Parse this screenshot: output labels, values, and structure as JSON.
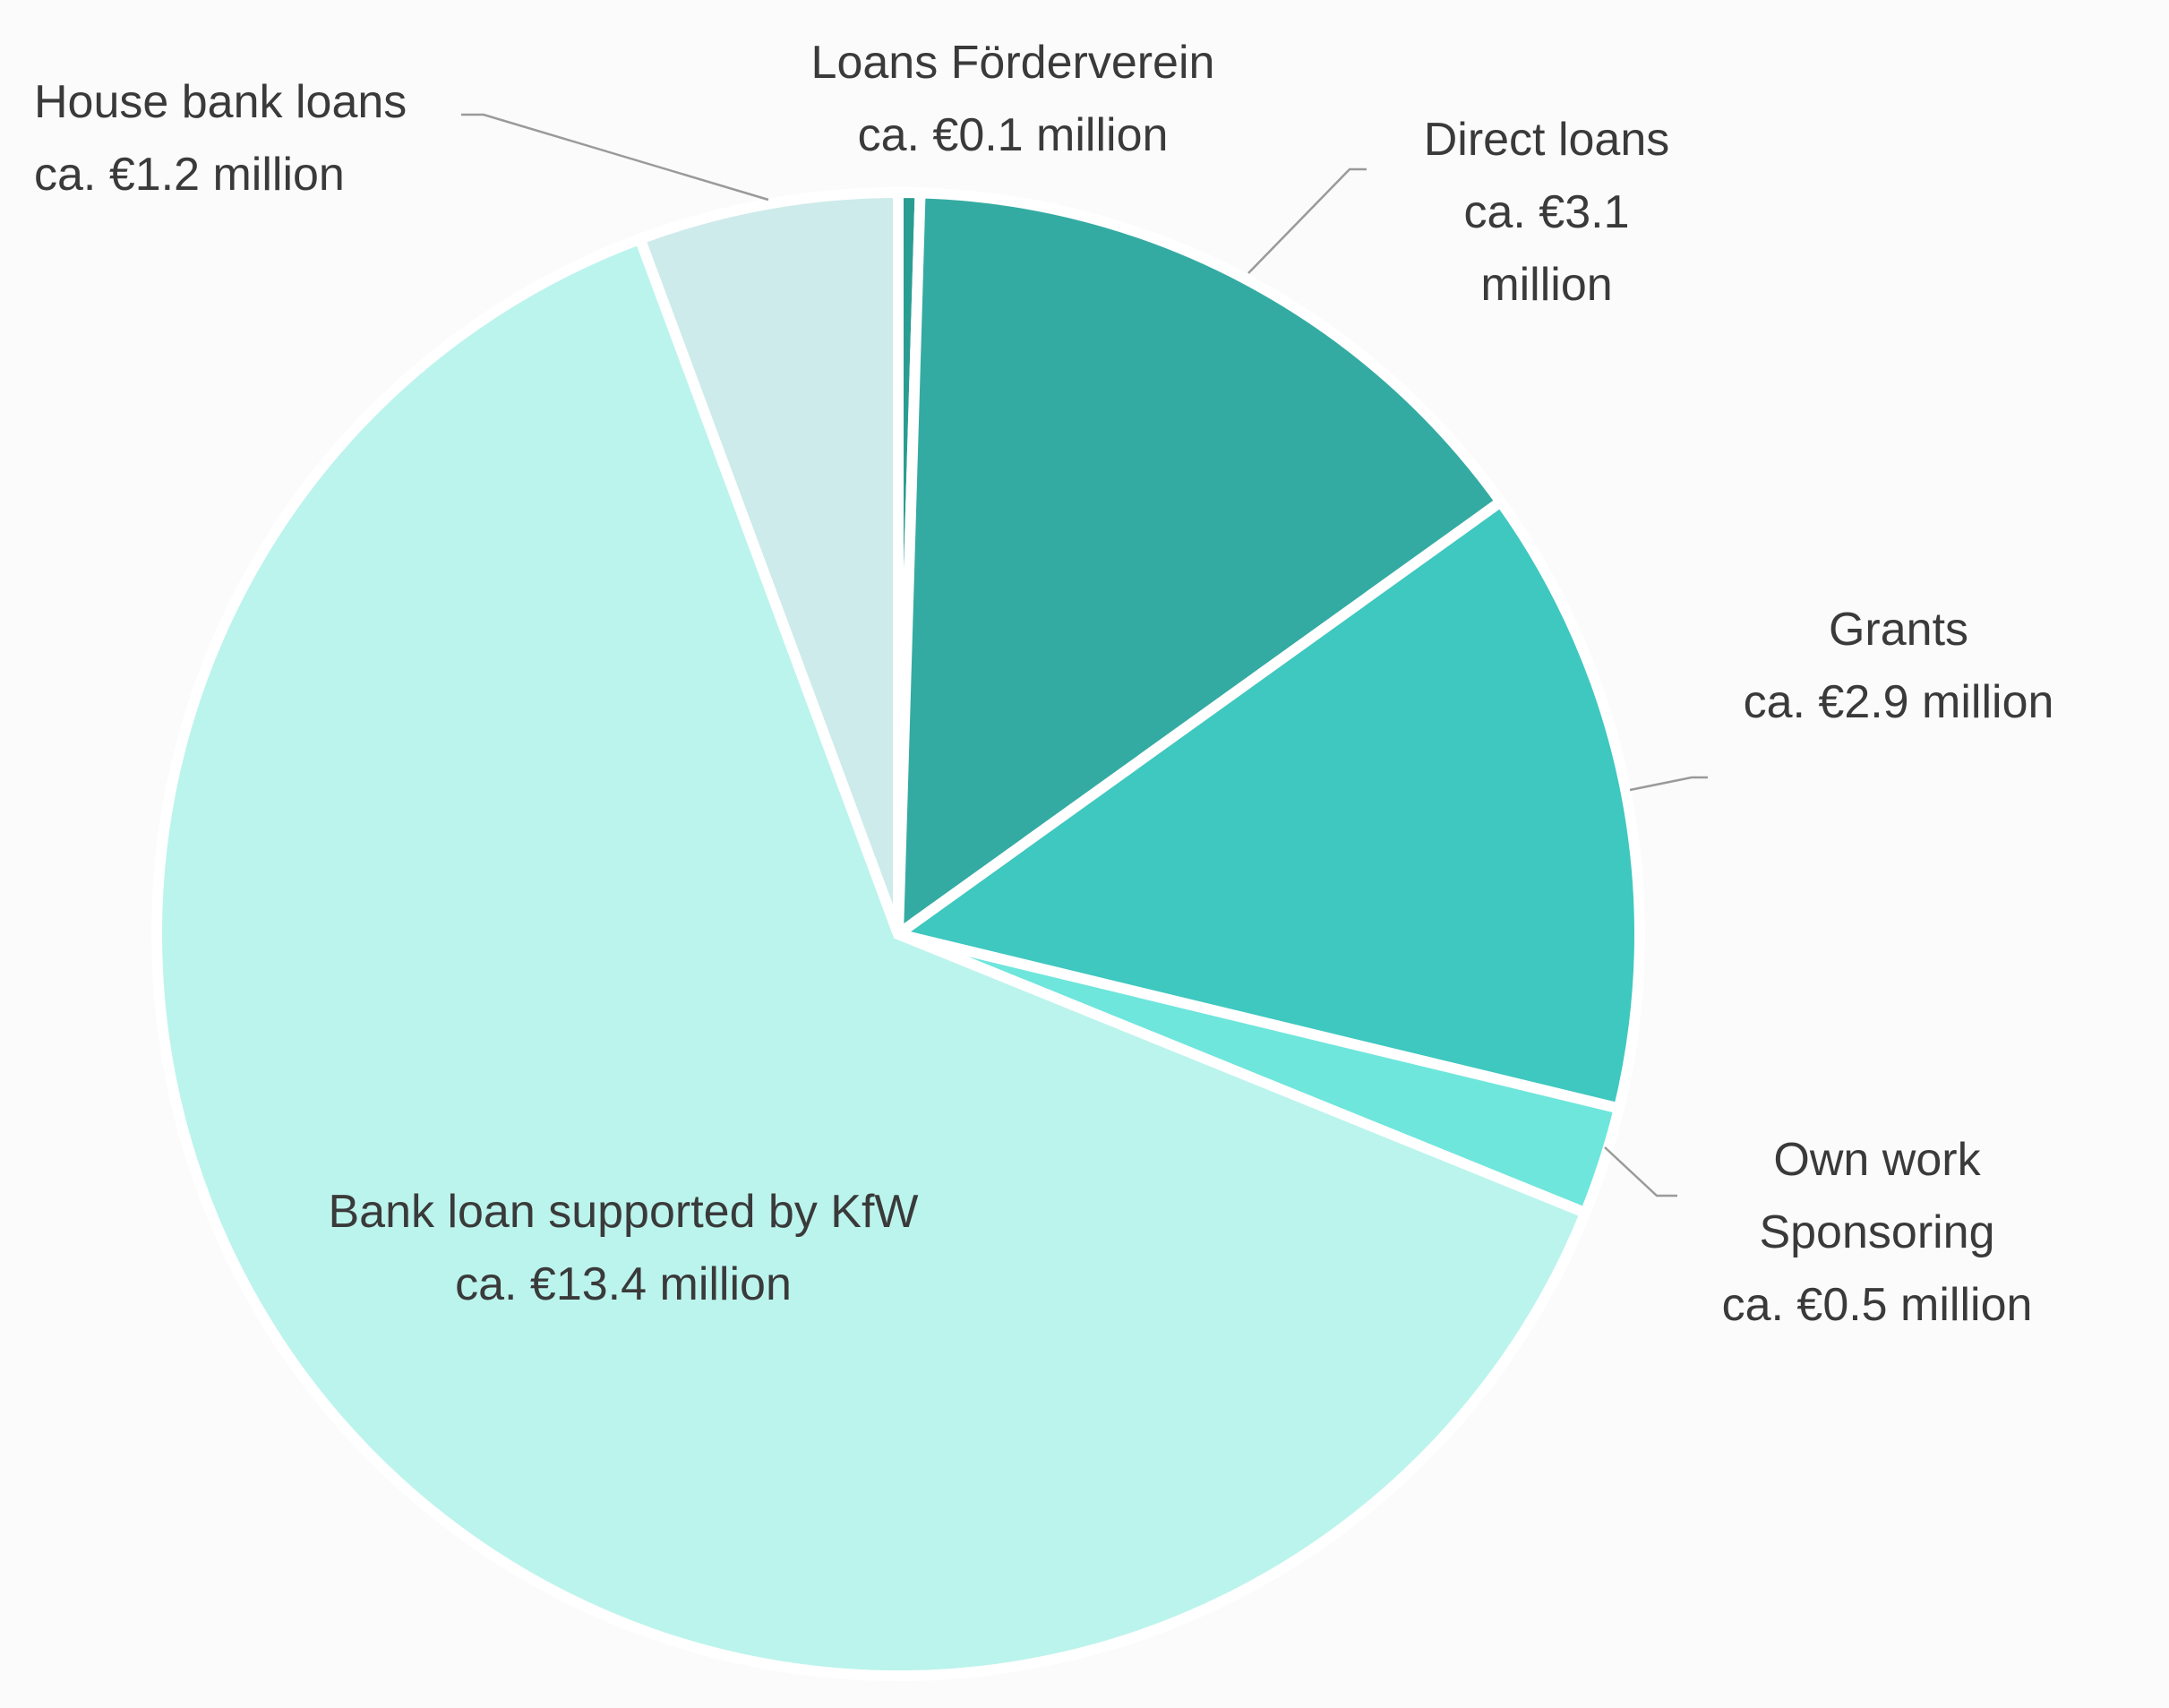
{
  "chart_data": {
    "type": "pie",
    "start_angle_deg": 0,
    "direction": "clockwise",
    "slices": [
      {
        "key": "loans-foerderverein",
        "value": 0.1,
        "color": "#2a9d93",
        "label_lines": [
          "Loans Förderverein",
          "ca. €0.1 million"
        ]
      },
      {
        "key": "direct-loans",
        "value": 3.1,
        "color": "#34aba2",
        "label_lines": [
          "Direct loans",
          "ca. €3.1",
          "million"
        ]
      },
      {
        "key": "grants",
        "value": 2.9,
        "color": "#3ec8bf",
        "label_lines": [
          "Grants",
          "ca. €2.9 million"
        ]
      },
      {
        "key": "own-work-sponsoring",
        "value": 0.5,
        "color": "#6ee6dc",
        "label_lines": [
          "Own work",
          "Sponsoring",
          "ca. €0.5 million"
        ]
      },
      {
        "key": "bank-loan-kfw",
        "value": 13.4,
        "color": "#bbf4ed",
        "label_lines": [
          "Bank loan supported by KfW",
          "ca. €13.4 million"
        ]
      },
      {
        "key": "house-bank-loans",
        "value": 1.2,
        "color": "#cdebea",
        "label_lines": [
          "House bank loans",
          "ca. €1.2 million"
        ]
      }
    ]
  }
}
